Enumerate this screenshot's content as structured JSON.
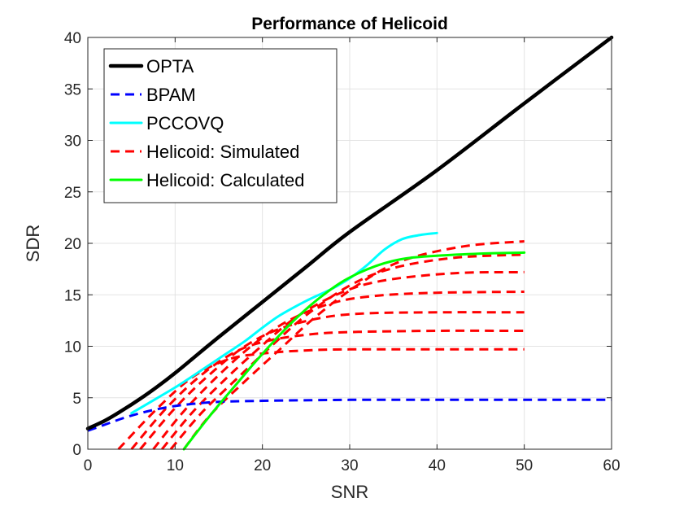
{
  "chart_data": {
    "type": "line",
    "title": "Performance of Helicoid",
    "xlabel": "SNR",
    "ylabel": "SDR",
    "xlim": [
      0,
      60
    ],
    "ylim": [
      0,
      40
    ],
    "xticks": [
      0,
      10,
      20,
      30,
      40,
      50,
      60
    ],
    "yticks": [
      0,
      5,
      10,
      15,
      20,
      25,
      30,
      35,
      40
    ],
    "grid": true,
    "legend_position": "top-left",
    "series": [
      {
        "name": "OPTA",
        "color": "#000000",
        "style": "solid",
        "x": [
          0,
          2,
          4,
          6,
          8,
          10,
          12,
          15,
          20,
          25,
          30,
          40,
          50,
          60
        ],
        "y": [
          2.0,
          2.8,
          3.8,
          4.9,
          6.1,
          7.4,
          8.8,
          10.9,
          14.3,
          17.7,
          21.1,
          27.1,
          33.6,
          40.0
        ]
      },
      {
        "name": "BPAM",
        "color": "#0000ff",
        "style": "dashed",
        "x": [
          0,
          2,
          4,
          6,
          8,
          10,
          12,
          15,
          20,
          30,
          40,
          50,
          60
        ],
        "y": [
          1.8,
          2.4,
          3.0,
          3.5,
          3.9,
          4.2,
          4.4,
          4.6,
          4.7,
          4.8,
          4.8,
          4.8,
          4.8
        ]
      },
      {
        "name": "PCCOVQ",
        "color": "#00ffff",
        "style": "solid",
        "x": [
          5,
          8,
          10,
          12,
          15,
          18,
          20,
          22,
          25,
          28,
          30,
          32,
          34,
          36,
          38,
          40
        ],
        "y": [
          3.5,
          5.0,
          6.0,
          7.1,
          8.8,
          10.5,
          11.8,
          13.0,
          14.4,
          15.6,
          16.6,
          17.9,
          19.4,
          20.4,
          20.8,
          21.0
        ]
      },
      {
        "name": "Helicoid: Simulated",
        "color": "#ff0000",
        "style": "dashed",
        "curves": [
          {
            "x": [
              3.5,
              8,
              12,
              16,
              20,
              25,
              30,
              40,
              50
            ],
            "y": [
              0,
              4.0,
              7.0,
              8.7,
              9.3,
              9.6,
              9.7,
              9.7,
              9.7
            ]
          },
          {
            "x": [
              5,
              9,
              13,
              17,
              21,
              26,
              31,
              40,
              50
            ],
            "y": [
              0,
              4.0,
              7.2,
              9.5,
              10.6,
              11.2,
              11.4,
              11.5,
              11.5
            ]
          },
          {
            "x": [
              6,
              10,
              14,
              18,
              22,
              27,
              32,
              40,
              50
            ],
            "y": [
              0,
              4.0,
              7.3,
              10.0,
              11.7,
              12.8,
              13.2,
              13.3,
              13.3
            ]
          },
          {
            "x": [
              7.5,
              11,
              15,
              19,
              23,
              28,
              33,
              40,
              50
            ],
            "y": [
              0,
              3.7,
              7.2,
              10.2,
              12.5,
              14.2,
              14.9,
              15.2,
              15.3
            ]
          },
          {
            "x": [
              8.5,
              12,
              16,
              20,
              24,
              29,
              34,
              42,
              50
            ],
            "y": [
              0,
              3.6,
              7.0,
              10.1,
              12.9,
              15.2,
              16.4,
              17.1,
              17.2
            ]
          },
          {
            "x": [
              9.5,
              13,
              17,
              21,
              25,
              30,
              35,
              42,
              50
            ],
            "y": [
              0,
              3.5,
              6.8,
              10.0,
              13.0,
              15.9,
              17.6,
              18.6,
              18.9
            ]
          },
          {
            "x": [
              11,
              14,
              18,
              22,
              26,
              31,
              36,
              43,
              50
            ],
            "y": [
              0,
              3.3,
              6.6,
              9.7,
              12.8,
              16.0,
              18.3,
              19.7,
              20.2
            ]
          }
        ]
      },
      {
        "name": "Helicoid: Calculated",
        "color": "#00ff00",
        "style": "solid",
        "x": [
          11,
          13,
          15,
          17,
          19,
          21,
          23,
          25,
          27,
          29,
          31,
          33,
          35,
          37,
          40,
          45,
          50
        ],
        "y": [
          0,
          2.2,
          4.3,
          6.3,
          8.3,
          10.2,
          12.0,
          13.6,
          15.0,
          16.2,
          17.1,
          17.8,
          18.3,
          18.6,
          18.8,
          19.0,
          19.1
        ]
      }
    ]
  }
}
